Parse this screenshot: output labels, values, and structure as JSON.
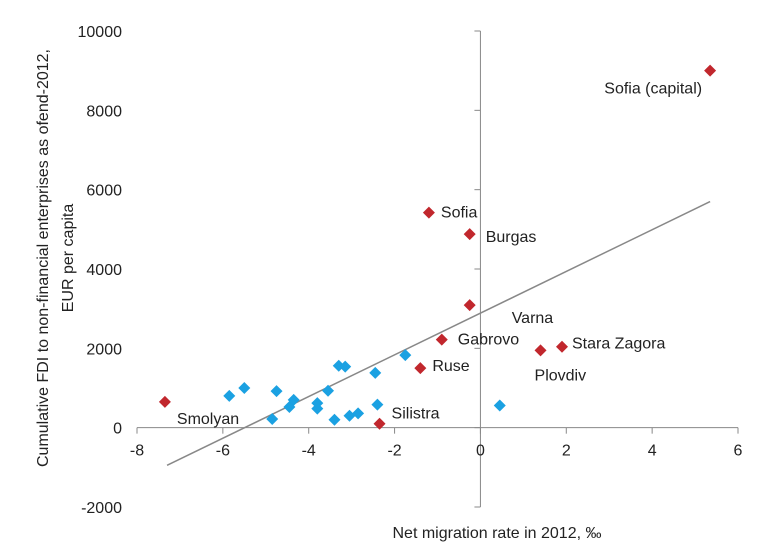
{
  "colors": {
    "highlight": "#c1272d",
    "other": "#1ba1e2",
    "axis": "#888888",
    "trend": "#888888"
  },
  "chart_data": {
    "type": "scatter",
    "xlabel": "Net migration rate in 2012, ‰",
    "ylabel_lines": [
      "Cumulative FDI to non-financial enterprises as ofend-2012,",
      "EUR per capita"
    ],
    "xlim": [
      -8,
      6
    ],
    "ylim": [
      -2000,
      10000
    ],
    "x_ticks": [
      -8,
      -6,
      -4,
      -2,
      0,
      2,
      4,
      6
    ],
    "y_ticks": [
      -2000,
      0,
      2000,
      4000,
      6000,
      8000,
      10000
    ],
    "x_tick_labels": [
      "-8",
      "-6",
      "-4",
      "-2",
      "0",
      "2",
      "4",
      "6"
    ],
    "y_tick_labels": [
      "-2000",
      "0",
      "2000",
      "4000",
      "6000",
      "8000",
      "10000"
    ],
    "trendline": {
      "x": [
        -7.3,
        5.35
      ],
      "y": [
        -950,
        5700
      ]
    },
    "series": [
      {
        "points": [
          {
            "x": 5.35,
            "y": 9000,
            "label": "Sofia (capital)"
          },
          {
            "x": -1.2,
            "y": 5420,
            "label": "Sofia"
          },
          {
            "x": -0.25,
            "y": 4880,
            "label": "Burgas"
          },
          {
            "x": -0.25,
            "y": 3090,
            "label": "Varna"
          },
          {
            "x": -0.9,
            "y": 2220,
            "label": "Gabrovo"
          },
          {
            "x": 1.9,
            "y": 2040,
            "label": "Stara Zagora"
          },
          {
            "x": 1.4,
            "y": 1950,
            "label": "Plovdiv"
          },
          {
            "x": -1.4,
            "y": 1500,
            "label": "Ruse"
          },
          {
            "x": -7.35,
            "y": 650,
            "label": "Smolyan"
          },
          {
            "x": -2.35,
            "y": 100,
            "label": "Silistra"
          }
        ]
      },
      {
        "points": [
          {
            "x": -5.85,
            "y": 800
          },
          {
            "x": -5.5,
            "y": 1000
          },
          {
            "x": -4.85,
            "y": 220
          },
          {
            "x": -4.75,
            "y": 920
          },
          {
            "x": -4.45,
            "y": 520
          },
          {
            "x": -4.35,
            "y": 700
          },
          {
            "x": -3.8,
            "y": 480
          },
          {
            "x": -3.8,
            "y": 620
          },
          {
            "x": -3.55,
            "y": 930
          },
          {
            "x": -3.4,
            "y": 200
          },
          {
            "x": -3.3,
            "y": 1560
          },
          {
            "x": -3.15,
            "y": 1540
          },
          {
            "x": -3.05,
            "y": 300
          },
          {
            "x": -2.85,
            "y": 360
          },
          {
            "x": -2.45,
            "y": 1380
          },
          {
            "x": -2.4,
            "y": 580
          },
          {
            "x": -1.75,
            "y": 1830
          },
          {
            "x": 0.45,
            "y": 560
          }
        ]
      }
    ]
  }
}
